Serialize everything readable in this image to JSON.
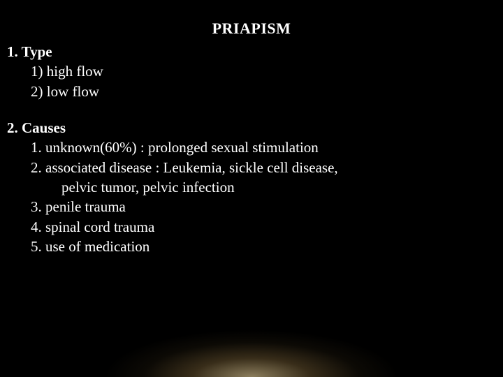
{
  "title": "PRIAPISM",
  "section1": {
    "heading": "1. Type",
    "items": [
      "1) high flow",
      "2) low flow"
    ]
  },
  "section2": {
    "heading": "2. Causes",
    "items": [
      "1. unknown(60%) : prolonged sexual stimulation",
      "2. associated disease : Leukemia, sickle cell disease,",
      "pelvic tumor, pelvic infection",
      "3. penile trauma",
      "4. spinal cord trauma",
      "5. use of medication"
    ]
  },
  "colors": {
    "background": "#000000",
    "text": "#ffffff"
  },
  "typography": {
    "font_family": "Times New Roman",
    "title_fontsize": 22,
    "body_fontsize": 21,
    "title_weight": "bold",
    "heading_weight": "bold"
  }
}
